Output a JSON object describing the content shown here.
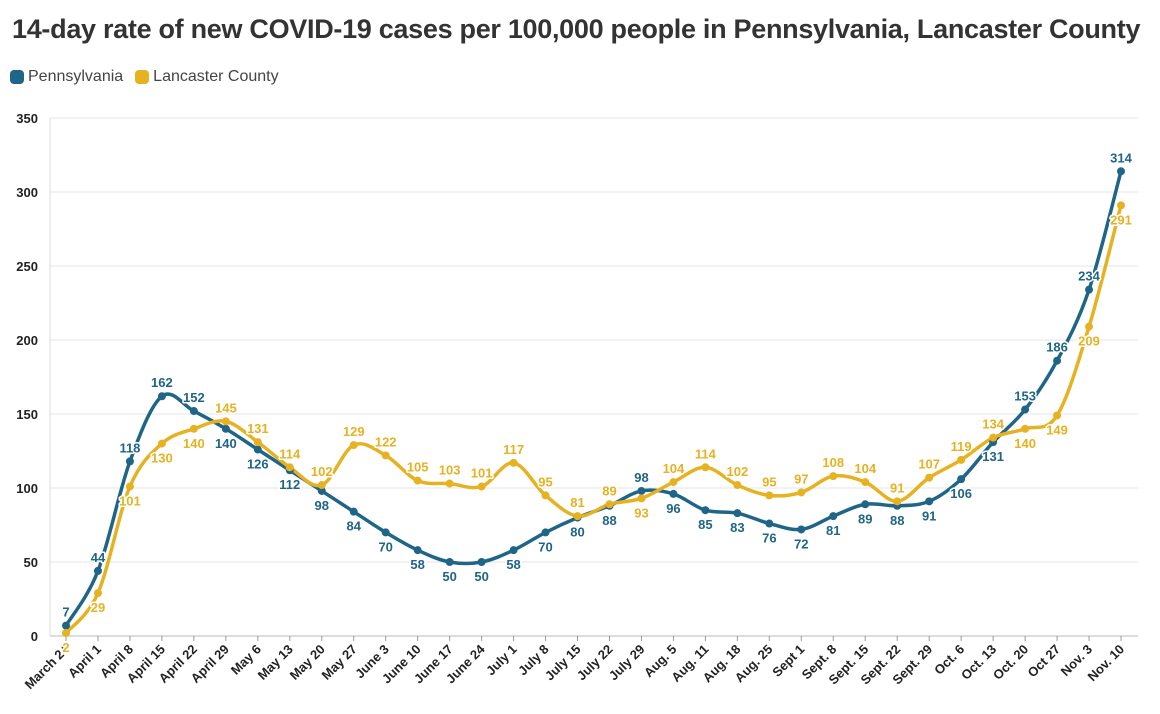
{
  "title": "14-day rate of new COVID-19 cases per 100,000 people in Pennsylvania, Lancaster County",
  "colors": {
    "pennsylvania": "#1f6587",
    "lancaster": "#e7b221",
    "grid": "#e6e6e6",
    "axis": "#333333"
  },
  "chart_data": {
    "type": "line",
    "title": "14-day rate of new COVID-19 cases per 100,000 people in Pennsylvania, Lancaster County",
    "xlabel": "",
    "ylabel": "",
    "ylim": [
      0,
      350
    ],
    "yticks": [
      0,
      50,
      100,
      150,
      200,
      250,
      300,
      350
    ],
    "grid": true,
    "legend_position": "top-left",
    "categories": [
      "March 24",
      "April 1",
      "April 8",
      "April 15",
      "April 22",
      "April 29",
      "May 6",
      "May 13",
      "May 20",
      "May 27",
      "June 3",
      "June 10",
      "June 17",
      "June 24",
      "July 1",
      "July 8",
      "July 15",
      "July 22",
      "July 29",
      "Aug. 5",
      "Aug. 11",
      "Aug. 18",
      "Aug. 25",
      "Sept 1",
      "Sept. 8",
      "Sept. 15",
      "Sept. 22",
      "Sept. 29",
      "Oct. 6",
      "Oct. 13",
      "Oct. 20",
      "Oct 27",
      "Nov. 3",
      "Nov. 10"
    ],
    "series": [
      {
        "name": "Pennsylvania",
        "color": "#1f6587",
        "values": [
          7,
          44,
          118,
          162,
          152,
          140,
          126,
          112,
          98,
          84,
          70,
          58,
          50,
          50,
          58,
          70,
          80,
          88,
          98,
          96,
          85,
          83,
          76,
          72,
          81,
          89,
          88,
          91,
          106,
          131,
          153,
          186,
          234,
          314
        ]
      },
      {
        "name": "Lancaster County",
        "color": "#e7b221",
        "values": [
          2,
          29,
          101,
          130,
          140,
          145,
          131,
          114,
          102,
          129,
          122,
          105,
          103,
          101,
          117,
          95,
          81,
          89,
          93,
          104,
          114,
          102,
          95,
          97,
          108,
          104,
          91,
          107,
          119,
          134,
          140,
          149,
          209,
          291
        ]
      }
    ]
  }
}
